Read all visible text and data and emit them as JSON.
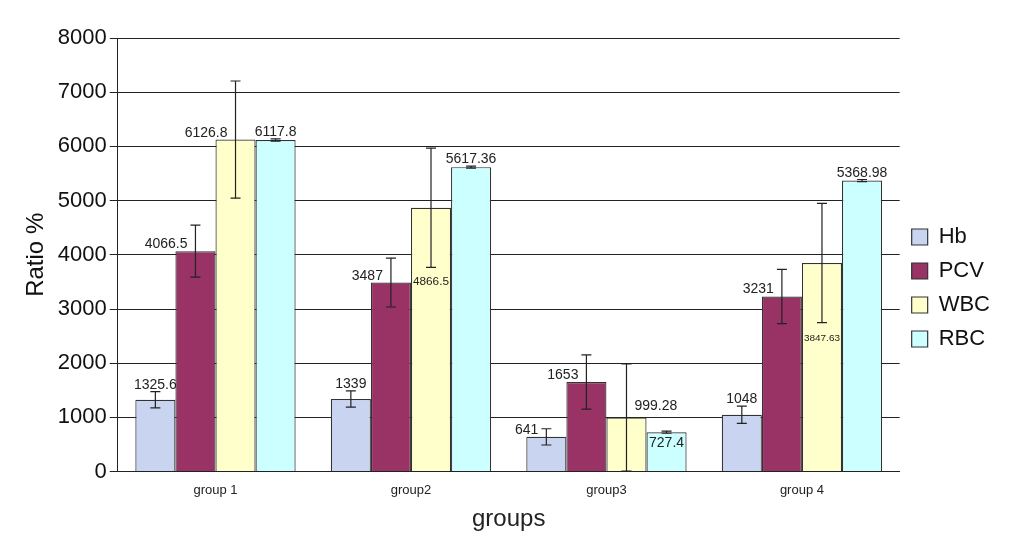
{
  "chart_data": {
    "type": "bar",
    "xlabel": "groups",
    "ylabel": "Ratio %",
    "categories": [
      "group 1",
      "group2",
      "group3",
      "group 4"
    ],
    "series": [
      {
        "name": "Hb",
        "color": "#c8d4f0",
        "values": [
          1325.6,
          1339,
          641,
          1048
        ],
        "errors": [
          150,
          150,
          150,
          160
        ]
      },
      {
        "name": "PCV",
        "color": "#993366",
        "values": [
          4066.5,
          3487,
          1653,
          3231
        ],
        "errors": [
          480,
          450,
          500,
          500
        ]
      },
      {
        "name": "WBC",
        "color": "#ffffcc",
        "values": [
          6126.8,
          4866.5,
          999.28,
          3847.63
        ],
        "errors": [
          1080,
          1100,
          990,
          1100
        ]
      },
      {
        "name": "RBC",
        "color": "#ccffff",
        "values": [
          6117.8,
          5617.36,
          727.4,
          5368.98
        ],
        "errors": [
          20,
          20,
          20,
          20
        ]
      }
    ],
    "ylim": [
      0,
      8000
    ],
    "yticks": [
      0,
      1000,
      2000,
      3000,
      4000,
      5000,
      6000,
      7000,
      8000
    ],
    "grid": "y",
    "legend": "right",
    "data_labels": true
  }
}
